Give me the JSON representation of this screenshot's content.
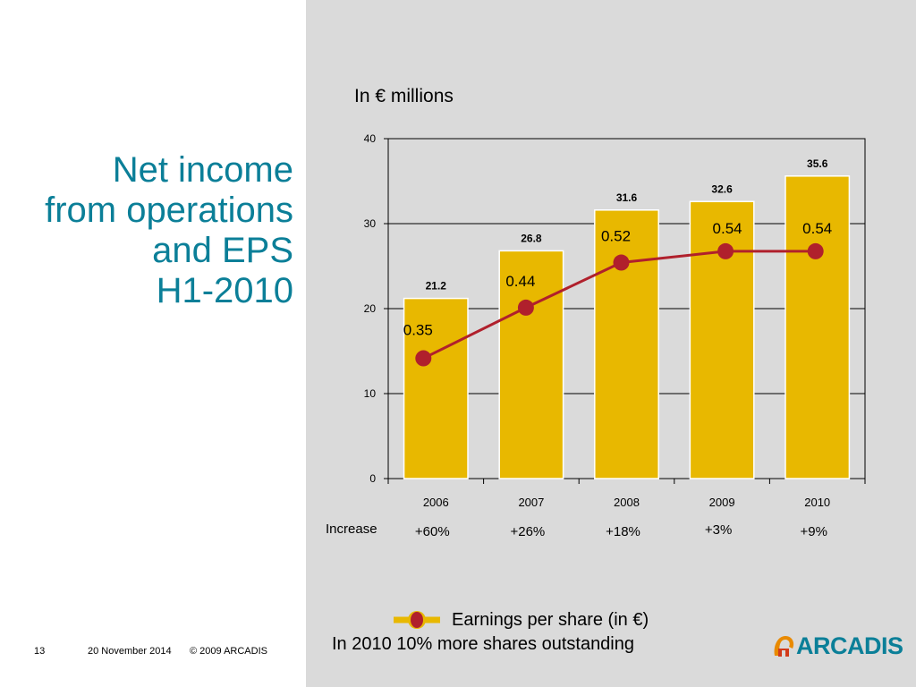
{
  "slide": {
    "title_lines": [
      "Net income",
      "from operations",
      "and EPS",
      "H1-2010"
    ],
    "unit_label": "In € millions",
    "increase_label": "Increase",
    "increases": [
      "+60%",
      "+26%",
      "+18%",
      "+3%",
      "+9%"
    ],
    "legend_label": "Earnings per share (in €)",
    "note": "In 2010 10% more shares outstanding",
    "footer": {
      "page": "13",
      "date": "20 November 2014",
      "copyright": "© 2009 ARCADIS"
    },
    "logo_text": "ARCADIS"
  },
  "colors": {
    "title": "#0b7f98",
    "bar": "#e8b800",
    "line": "#b0202c",
    "panel": "#dadada"
  },
  "chart_data": {
    "type": "bar",
    "categories": [
      "2006",
      "2007",
      "2008",
      "2009",
      "2010"
    ],
    "values": [
      21.2,
      26.8,
      31.6,
      32.6,
      35.6
    ],
    "value_labels": [
      "21.2",
      "26.8",
      "31.6",
      "32.6",
      "35.6"
    ],
    "ylim": [
      0,
      40
    ],
    "yticks": [
      0,
      10,
      20,
      30,
      40
    ],
    "grid": true,
    "line_series": {
      "name": "Earnings per share (in €)",
      "values": [
        0.35,
        0.44,
        0.52,
        0.54,
        0.54
      ],
      "labels": [
        "0.35",
        "0.44",
        "0.52",
        "0.54",
        "0.54"
      ]
    }
  }
}
